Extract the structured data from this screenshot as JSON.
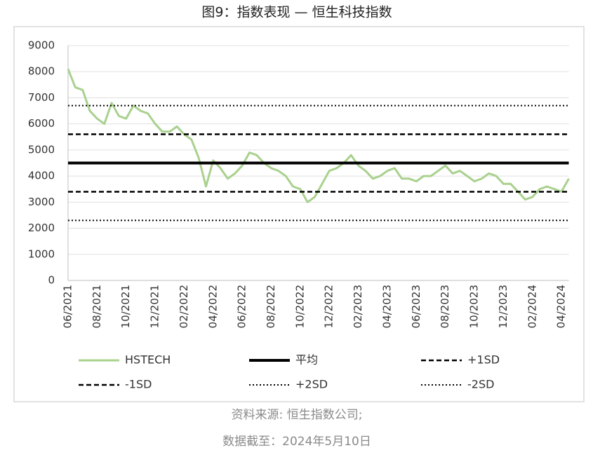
{
  "chart_data": {
    "type": "line",
    "title": "图9：指数表现 — 恒生科技指数",
    "notes": [
      "资料来源: 恒生指数公司;",
      "数据截至：2024年5月10日"
    ],
    "categories": [
      "06/2021",
      null,
      null,
      null,
      "08/2021",
      null,
      null,
      null,
      "10/2021",
      null,
      null,
      null,
      "12/2021",
      null,
      null,
      null,
      "02/2022",
      null,
      null,
      null,
      "04/2022",
      null,
      null,
      null,
      "06/2022",
      null,
      null,
      null,
      "08/2022",
      null,
      null,
      null,
      "10/2022",
      null,
      null,
      null,
      "12/2022",
      null,
      null,
      null,
      "02/2023",
      null,
      null,
      null,
      "04/2023",
      null,
      null,
      null,
      "06/2023",
      null,
      null,
      null,
      "08/2023",
      null,
      null,
      null,
      "10/2023",
      null,
      null,
      null,
      "12/2023",
      null,
      null,
      null,
      "02/2024",
      null,
      null,
      null,
      "04/2024",
      null
    ],
    "series": [
      {
        "name": "HSTECH",
        "color": "#a9d18e",
        "values": [
          8100,
          7400,
          7300,
          6500,
          6200,
          6000,
          6800,
          6300,
          6200,
          6700,
          6500,
          6400,
          6000,
          5700,
          5700,
          5900,
          5600,
          5400,
          4700,
          3600,
          4600,
          4300,
          3900,
          4100,
          4400,
          4900,
          4800,
          4500,
          4300,
          4200,
          4000,
          3600,
          3500,
          3000,
          3200,
          3700,
          4200,
          4300,
          4500,
          4800,
          4400,
          4200,
          3900,
          4000,
          4200,
          4300,
          3900,
          3900,
          3800,
          4000,
          4000,
          4200,
          4400,
          4100,
          4200,
          4000,
          3800,
          3900,
          4100,
          4000,
          3700,
          3700,
          3400,
          3100,
          3200,
          3500,
          3600,
          3500,
          3400,
          3900
        ]
      }
    ],
    "reference_lines": [
      {
        "name": "平均",
        "value": 4500,
        "color": "#000000",
        "style": "solid"
      },
      {
        "name": "+1SD",
        "value": 5600,
        "color": "#000000",
        "style": "dashed"
      },
      {
        "name": "-1SD",
        "value": 3400,
        "color": "#000000",
        "style": "dashed"
      },
      {
        "name": "+2SD",
        "value": 6700,
        "color": "#000000",
        "style": "dotted"
      },
      {
        "name": "-2SD",
        "value": 2300,
        "color": "#000000",
        "style": "dotted"
      }
    ],
    "ylim": [
      0,
      9000
    ],
    "yticks": [
      0,
      1000,
      2000,
      3000,
      4000,
      5000,
      6000,
      7000,
      8000,
      9000
    ],
    "grid": true,
    "legend": "bottom"
  }
}
